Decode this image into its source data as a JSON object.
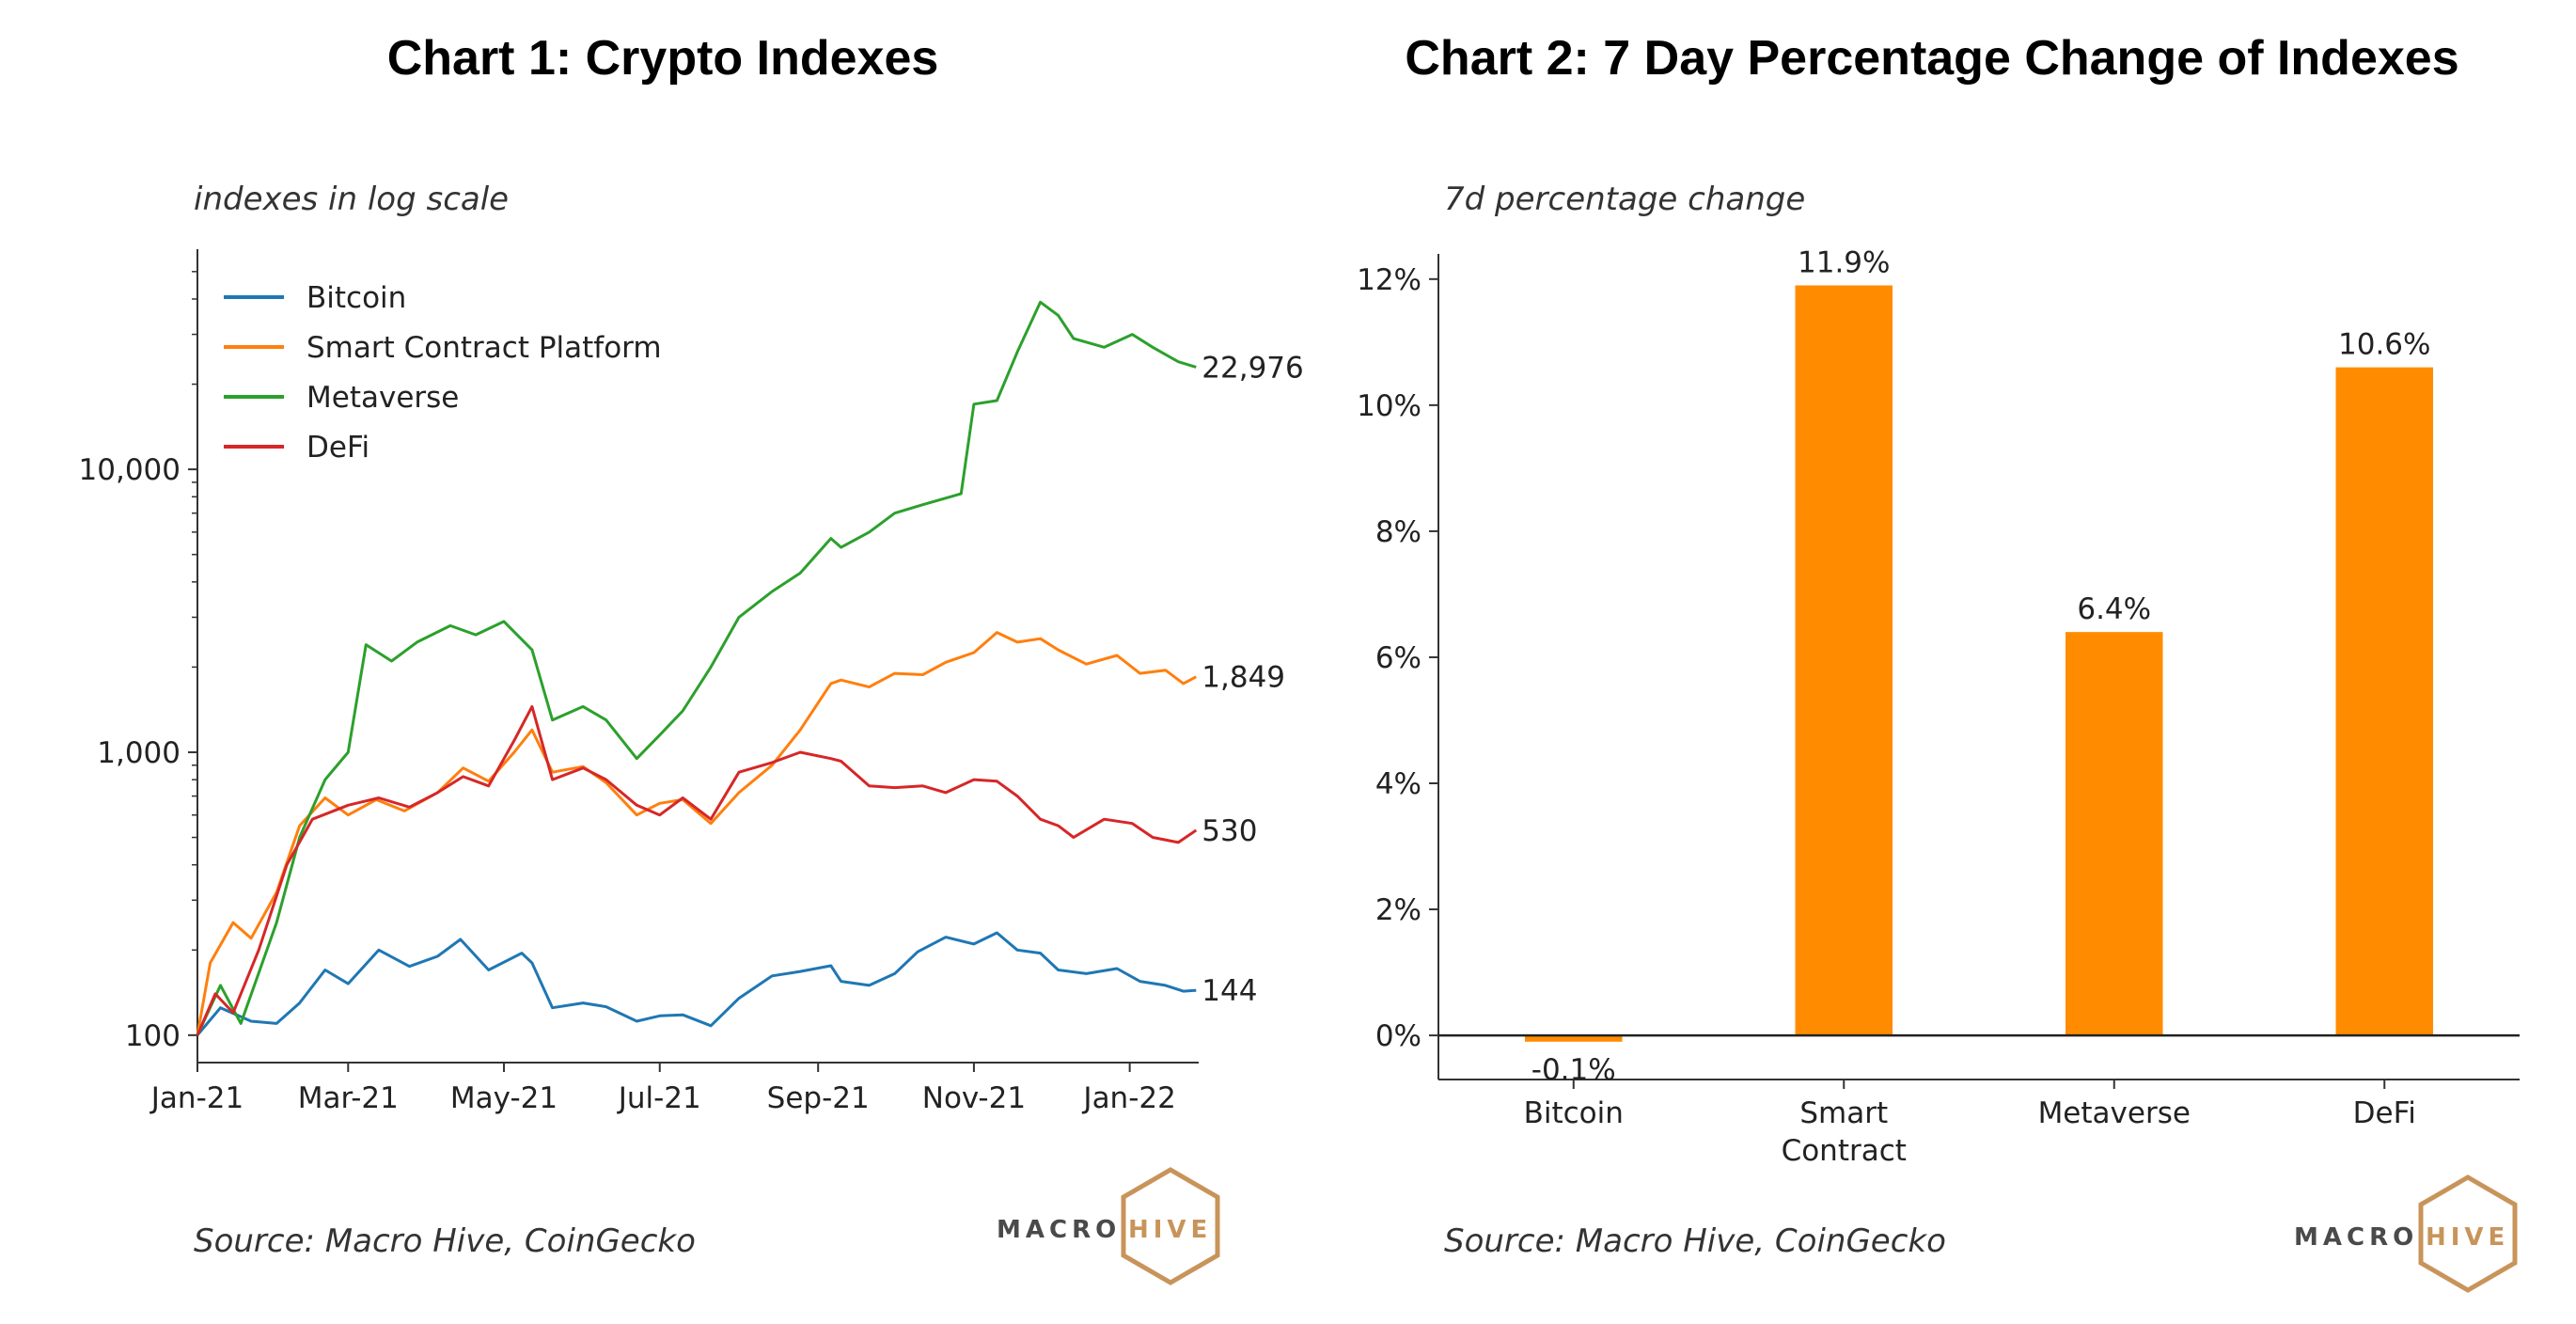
{
  "brand": {
    "accent": "#c8945a"
  },
  "panel1": {
    "title": "Chart 1: Crypto Indexes",
    "subtitle": "indexes in log scale",
    "source": "Source: Macro Hive, CoinGecko",
    "logo": {
      "word1": "MACRO",
      "word2": "HIVE"
    }
  },
  "panel2": {
    "title": "Chart 2: 7 Day Percentage Change of Indexes",
    "subtitle": "7d percentage change",
    "source": "Source: Macro Hive, CoinGecko",
    "logo": {
      "word1": "MACRO",
      "word2": "HIVE"
    }
  },
  "chart_data": [
    {
      "type": "line",
      "title": "Chart 1: Crypto Indexes",
      "ylabel": "indexes in log scale",
      "y_scale": "log",
      "ylim": [
        80,
        60000
      ],
      "xlim": [
        "2021-01-01",
        "2022-01-28"
      ],
      "y_ticks": [
        100,
        1000,
        10000
      ],
      "y_tick_labels": [
        "100",
        "1,000",
        "10,000"
      ],
      "x_ticks": [
        "2021-01-01",
        "2021-03-01",
        "2021-05-01",
        "2021-07-01",
        "2021-09-01",
        "2021-11-01",
        "2022-01-01"
      ],
      "x_tick_labels": [
        "Jan-21",
        "Mar-21",
        "May-21",
        "Jul-21",
        "Sep-21",
        "Nov-21",
        "Jan-22"
      ],
      "legend_position": "top-left",
      "grid": false,
      "series": [
        {
          "name": "Bitcoin",
          "color": "#1f77b4",
          "end_label": "144",
          "points": [
            [
              "2021-01-01",
              100
            ],
            [
              "2021-01-10",
              125
            ],
            [
              "2021-01-22",
              112
            ],
            [
              "2021-02-01",
              110
            ],
            [
              "2021-02-10",
              130
            ],
            [
              "2021-02-20",
              170
            ],
            [
              "2021-03-01",
              152
            ],
            [
              "2021-03-13",
              200
            ],
            [
              "2021-03-25",
              175
            ],
            [
              "2021-04-05",
              190
            ],
            [
              "2021-04-14",
              218
            ],
            [
              "2021-04-25",
              170
            ],
            [
              "2021-05-08",
              195
            ],
            [
              "2021-05-12",
              180
            ],
            [
              "2021-05-20",
              125
            ],
            [
              "2021-06-01",
              130
            ],
            [
              "2021-06-10",
              126
            ],
            [
              "2021-06-22",
              112
            ],
            [
              "2021-07-01",
              117
            ],
            [
              "2021-07-10",
              118
            ],
            [
              "2021-07-21",
              108
            ],
            [
              "2021-08-01",
              135
            ],
            [
              "2021-08-14",
              162
            ],
            [
              "2021-08-25",
              168
            ],
            [
              "2021-09-06",
              176
            ],
            [
              "2021-09-10",
              155
            ],
            [
              "2021-09-21",
              150
            ],
            [
              "2021-10-01",
              165
            ],
            [
              "2021-10-10",
              197
            ],
            [
              "2021-10-21",
              222
            ],
            [
              "2021-11-01",
              210
            ],
            [
              "2021-11-10",
              230
            ],
            [
              "2021-11-18",
              200
            ],
            [
              "2021-11-27",
              195
            ],
            [
              "2021-12-04",
              170
            ],
            [
              "2021-12-15",
              165
            ],
            [
              "2021-12-27",
              172
            ],
            [
              "2022-01-05",
              155
            ],
            [
              "2022-01-15",
              150
            ],
            [
              "2022-01-22",
              143
            ],
            [
              "2022-01-27",
              144
            ]
          ]
        },
        {
          "name": "Smart Contract Platform",
          "color": "#ff7f0e",
          "end_label": "1,849",
          "points": [
            [
              "2021-01-01",
              100
            ],
            [
              "2021-01-06",
              180
            ],
            [
              "2021-01-15",
              250
            ],
            [
              "2021-01-22",
              220
            ],
            [
              "2021-02-01",
              320
            ],
            [
              "2021-02-10",
              550
            ],
            [
              "2021-02-20",
              690
            ],
            [
              "2021-03-01",
              600
            ],
            [
              "2021-03-12",
              680
            ],
            [
              "2021-03-23",
              620
            ],
            [
              "2021-04-05",
              720
            ],
            [
              "2021-04-15",
              880
            ],
            [
              "2021-04-25",
              790
            ],
            [
              "2021-05-05",
              1000
            ],
            [
              "2021-05-12",
              1200
            ],
            [
              "2021-05-20",
              850
            ],
            [
              "2021-06-01",
              890
            ],
            [
              "2021-06-10",
              780
            ],
            [
              "2021-06-22",
              600
            ],
            [
              "2021-07-01",
              660
            ],
            [
              "2021-07-10",
              680
            ],
            [
              "2021-07-21",
              560
            ],
            [
              "2021-08-01",
              720
            ],
            [
              "2021-08-14",
              900
            ],
            [
              "2021-08-25",
              1200
            ],
            [
              "2021-09-06",
              1750
            ],
            [
              "2021-09-10",
              1800
            ],
            [
              "2021-09-21",
              1700
            ],
            [
              "2021-10-01",
              1900
            ],
            [
              "2021-10-12",
              1880
            ],
            [
              "2021-10-21",
              2080
            ],
            [
              "2021-11-01",
              2250
            ],
            [
              "2021-11-10",
              2650
            ],
            [
              "2021-11-18",
              2450
            ],
            [
              "2021-11-27",
              2520
            ],
            [
              "2021-12-04",
              2300
            ],
            [
              "2021-12-15",
              2050
            ],
            [
              "2021-12-27",
              2200
            ],
            [
              "2022-01-05",
              1900
            ],
            [
              "2022-01-15",
              1950
            ],
            [
              "2022-01-22",
              1750
            ],
            [
              "2022-01-27",
              1849
            ]
          ]
        },
        {
          "name": "Metaverse",
          "color": "#2ca02c",
          "end_label": "22,976",
          "points": [
            [
              "2021-01-01",
              100
            ],
            [
              "2021-01-10",
              150
            ],
            [
              "2021-01-18",
              110
            ],
            [
              "2021-02-01",
              250
            ],
            [
              "2021-02-10",
              500
            ],
            [
              "2021-02-20",
              800
            ],
            [
              "2021-03-01",
              1000
            ],
            [
              "2021-03-08",
              2400
            ],
            [
              "2021-03-18",
              2100
            ],
            [
              "2021-03-28",
              2450
            ],
            [
              "2021-04-10",
              2800
            ],
            [
              "2021-04-20",
              2600
            ],
            [
              "2021-05-01",
              2900
            ],
            [
              "2021-05-12",
              2300
            ],
            [
              "2021-05-20",
              1300
            ],
            [
              "2021-06-01",
              1450
            ],
            [
              "2021-06-10",
              1300
            ],
            [
              "2021-06-22",
              950
            ],
            [
              "2021-07-01",
              1150
            ],
            [
              "2021-07-10",
              1400
            ],
            [
              "2021-07-21",
              2000
            ],
            [
              "2021-08-01",
              3000
            ],
            [
              "2021-08-14",
              3700
            ],
            [
              "2021-08-25",
              4300
            ],
            [
              "2021-09-06",
              5700
            ],
            [
              "2021-09-10",
              5300
            ],
            [
              "2021-09-21",
              6000
            ],
            [
              "2021-10-01",
              7000
            ],
            [
              "2021-10-12",
              7500
            ],
            [
              "2021-10-27",
              8200
            ],
            [
              "2021-11-01",
              17000
            ],
            [
              "2021-11-10",
              17500
            ],
            [
              "2021-11-18",
              26000
            ],
            [
              "2021-11-27",
              39000
            ],
            [
              "2021-12-04",
              35000
            ],
            [
              "2021-12-10",
              29000
            ],
            [
              "2021-12-22",
              27000
            ],
            [
              "2022-01-02",
              30000
            ],
            [
              "2022-01-10",
              27000
            ],
            [
              "2022-01-20",
              24000
            ],
            [
              "2022-01-27",
              22976
            ]
          ]
        },
        {
          "name": "DeFi",
          "color": "#d62728",
          "end_label": "530",
          "points": [
            [
              "2021-01-01",
              100
            ],
            [
              "2021-01-08",
              140
            ],
            [
              "2021-01-15",
              120
            ],
            [
              "2021-01-25",
              200
            ],
            [
              "2021-02-05",
              400
            ],
            [
              "2021-02-15",
              580
            ],
            [
              "2021-03-01",
              650
            ],
            [
              "2021-03-13",
              690
            ],
            [
              "2021-03-25",
              640
            ],
            [
              "2021-04-05",
              720
            ],
            [
              "2021-04-15",
              820
            ],
            [
              "2021-04-25",
              760
            ],
            [
              "2021-05-05",
              1100
            ],
            [
              "2021-05-12",
              1450
            ],
            [
              "2021-05-20",
              800
            ],
            [
              "2021-06-01",
              880
            ],
            [
              "2021-06-10",
              800
            ],
            [
              "2021-06-22",
              650
            ],
            [
              "2021-07-01",
              600
            ],
            [
              "2021-07-10",
              690
            ],
            [
              "2021-07-21",
              580
            ],
            [
              "2021-08-01",
              850
            ],
            [
              "2021-08-14",
              920
            ],
            [
              "2021-08-25",
              1000
            ],
            [
              "2021-09-06",
              950
            ],
            [
              "2021-09-10",
              930
            ],
            [
              "2021-09-21",
              760
            ],
            [
              "2021-10-01",
              750
            ],
            [
              "2021-10-12",
              760
            ],
            [
              "2021-10-21",
              720
            ],
            [
              "2021-11-01",
              800
            ],
            [
              "2021-11-10",
              790
            ],
            [
              "2021-11-18",
              700
            ],
            [
              "2021-11-27",
              580
            ],
            [
              "2021-12-04",
              550
            ],
            [
              "2021-12-10",
              500
            ],
            [
              "2021-12-22",
              580
            ],
            [
              "2022-01-02",
              560
            ],
            [
              "2022-01-10",
              500
            ],
            [
              "2022-01-20",
              480
            ],
            [
              "2022-01-27",
              530
            ]
          ]
        }
      ]
    },
    {
      "type": "bar",
      "title": "Chart 2: 7 Day Percentage Change of Indexes",
      "ylabel": "7d percentage change",
      "ylim": [
        -0.7,
        12.4
      ],
      "y_ticks": [
        0,
        2,
        4,
        6,
        8,
        10,
        12
      ],
      "y_tick_labels": [
        "0%",
        "2%",
        "4%",
        "6%",
        "8%",
        "10%",
        "12%"
      ],
      "categories": [
        "Bitcoin",
        "Smart Contract",
        "Metaverse",
        "DeFi"
      ],
      "values": [
        -0.1,
        11.9,
        6.4,
        10.6
      ],
      "data_labels": [
        "-0.1%",
        "11.9%",
        "6.4%",
        "10.6%"
      ],
      "bar_color": "#ff8c00",
      "grid": false
    }
  ]
}
